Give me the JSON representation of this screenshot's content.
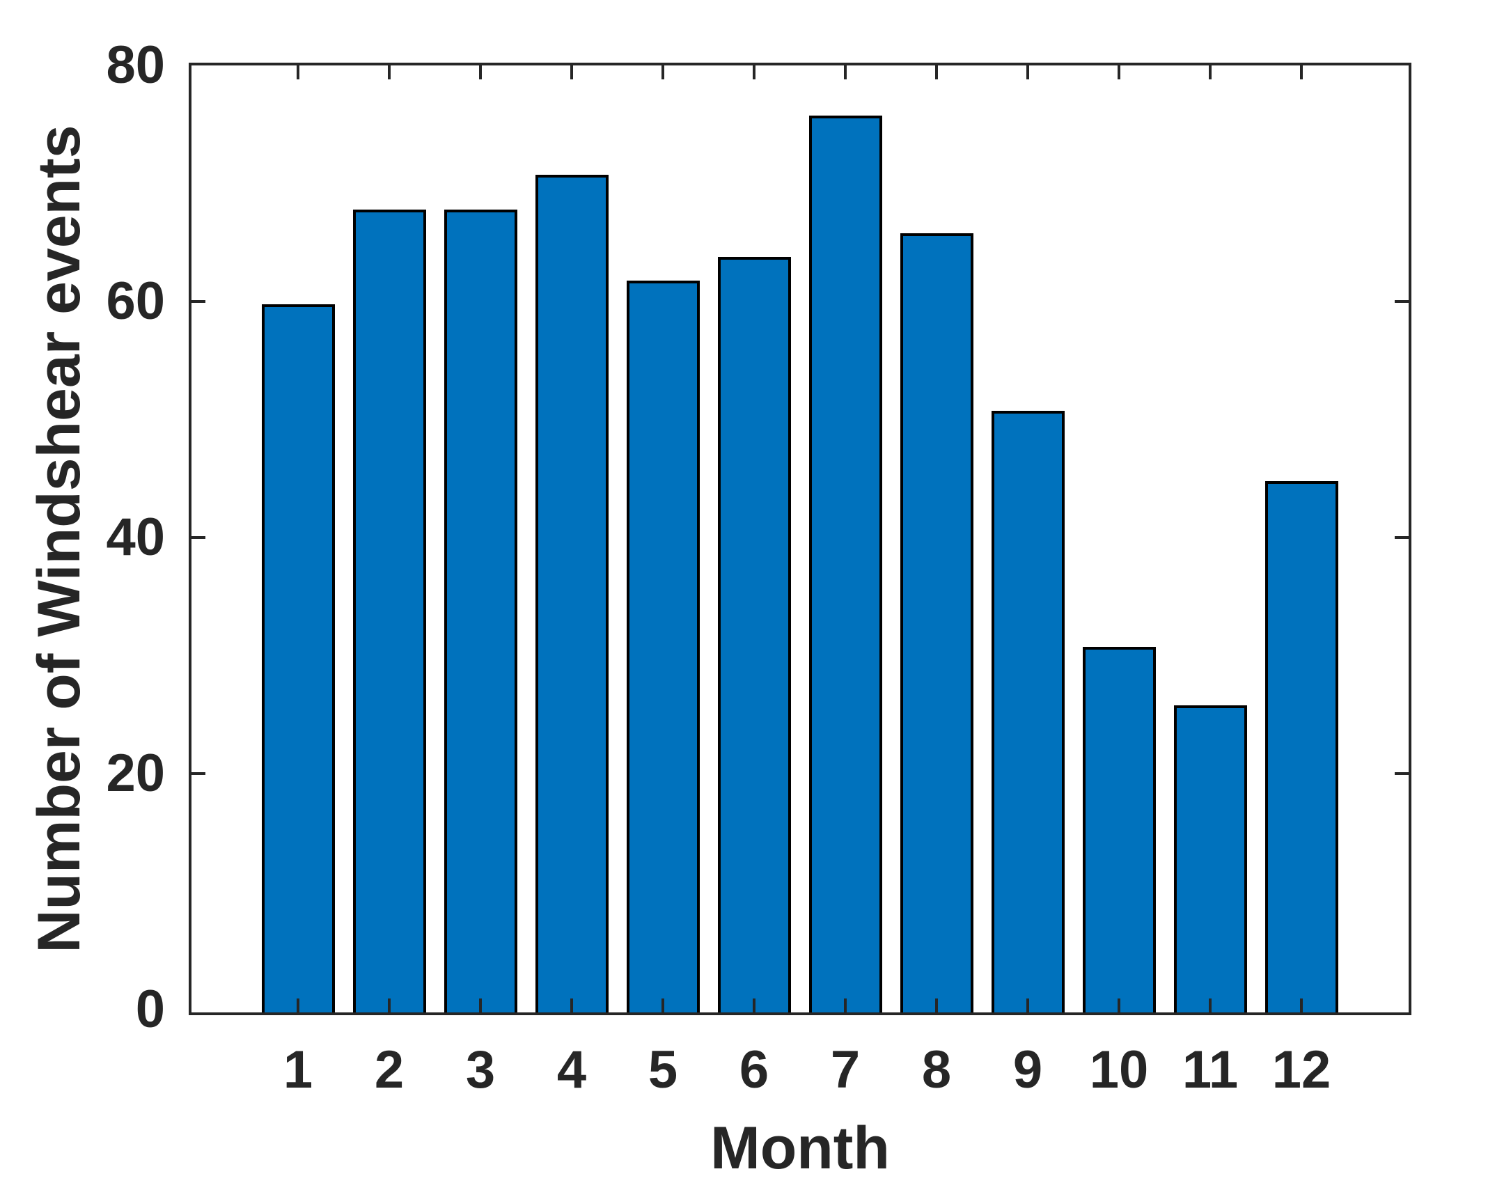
{
  "figure": {
    "xlabel": "Month",
    "ylabel": "Number of Windshear events"
  },
  "chart_data": {
    "type": "bar",
    "title": "",
    "xlabel": "Month",
    "ylabel": "Number of Windshear events",
    "categories": [
      "1",
      "2",
      "3",
      "4",
      "5",
      "6",
      "7",
      "8",
      "9",
      "10",
      "11",
      "12"
    ],
    "values": [
      60,
      68,
      68,
      71,
      62,
      64,
      76,
      66,
      51,
      31,
      26,
      45
    ],
    "yticks": [
      0,
      20,
      40,
      60,
      80
    ],
    "ylim": [
      0,
      80
    ],
    "grid": "off",
    "legend": "none",
    "bar_fill_color": "#0072BD",
    "bar_edge_color": "#000000",
    "axis_color": "#262626"
  }
}
